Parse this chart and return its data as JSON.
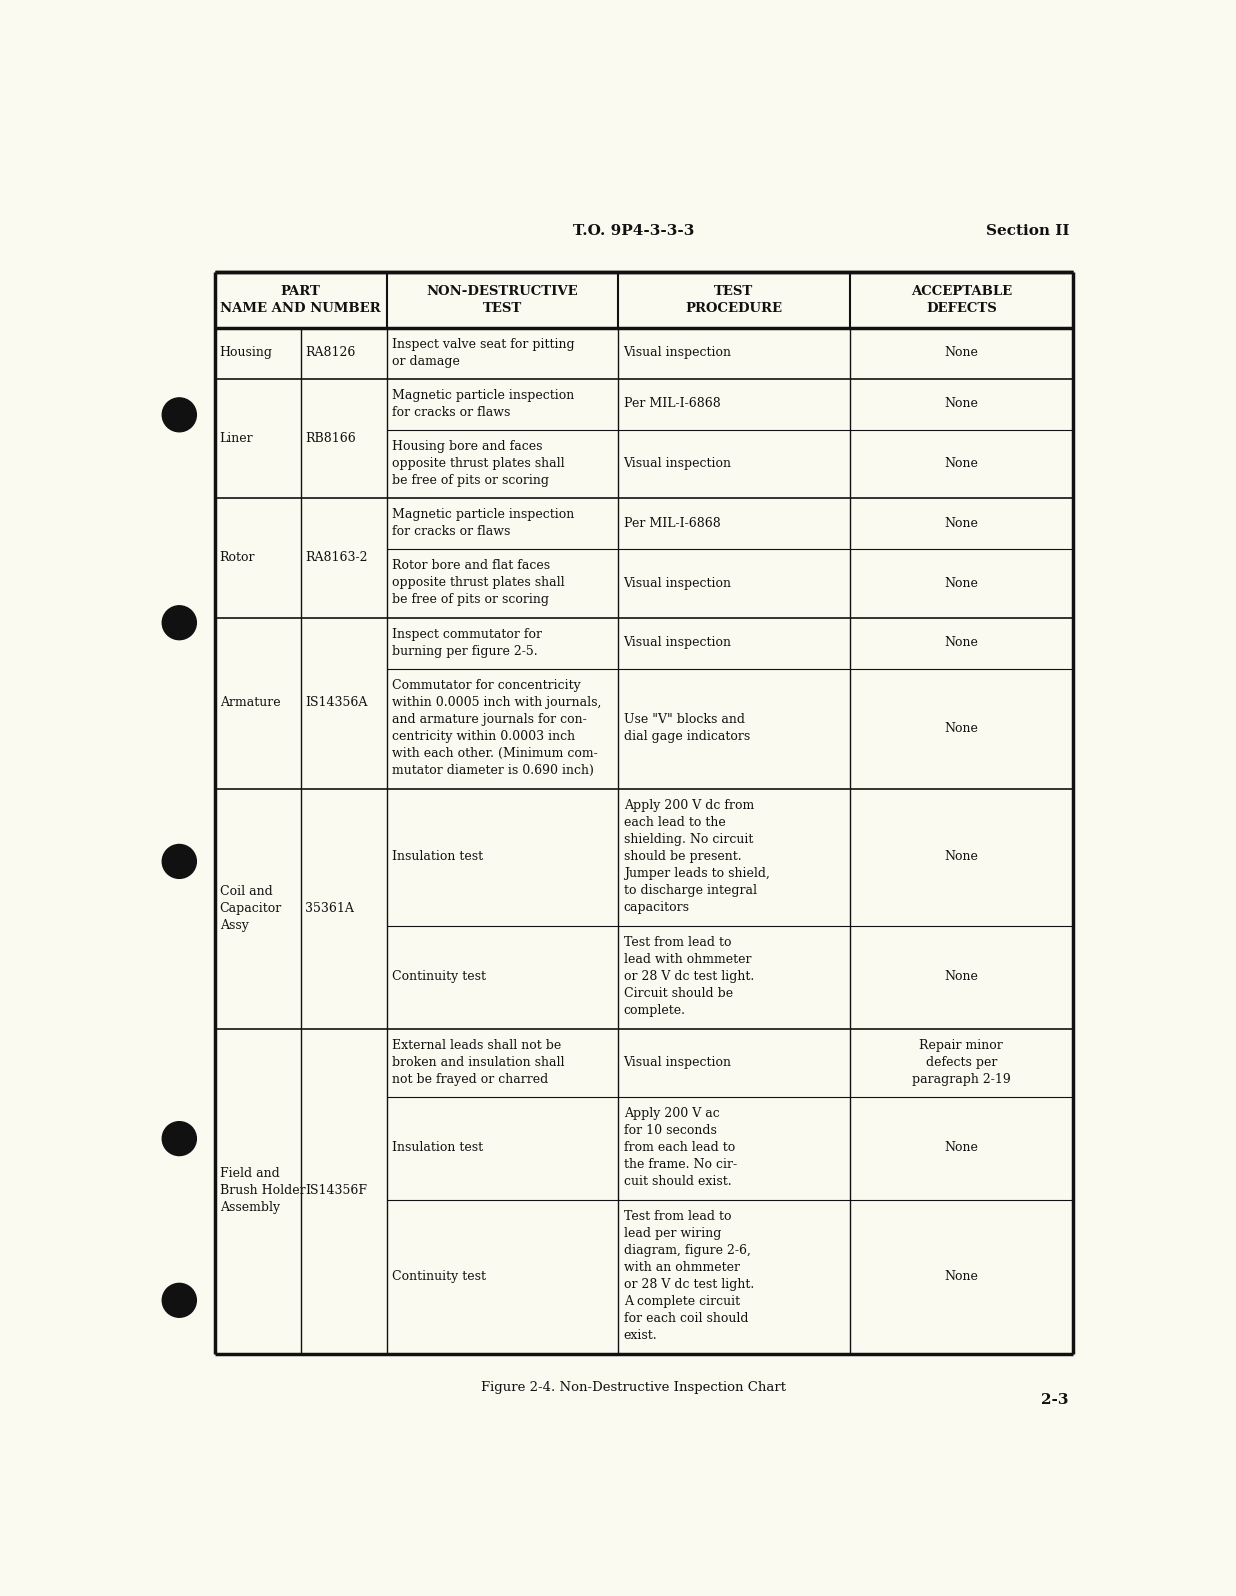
{
  "page_header_center": "T.O. 9P4-3-3-3",
  "page_header_right": "Section II",
  "page_footer_right": "2-3",
  "figure_caption": "Figure 2-4. Non-Destructive Inspection Chart",
  "background_color": "#FAFAF0",
  "table_header_row1": [
    "PART\nNAME AND NUMBER",
    "NON-DESTRUCTIVE\nTEST",
    "TEST\nPROCEDURE",
    "ACCEPTABLE\nDEFECTS"
  ],
  "rows": [
    {
      "part_name": "Housing",
      "part_number": "RA8126",
      "sub_rows": [
        {
          "ndt": "Inspect valve seat for pitting\nor damage",
          "procedure": "Visual inspection",
          "defects": "None"
        }
      ]
    },
    {
      "part_name": "Liner",
      "part_number": "RB8166",
      "sub_rows": [
        {
          "ndt": "Magnetic particle inspection\nfor cracks or flaws",
          "procedure": "Per MIL-I-6868",
          "defects": "None"
        },
        {
          "ndt": "Housing bore and faces\nopposite thrust plates shall\nbe free of pits or scoring",
          "procedure": "Visual inspection",
          "defects": "None"
        }
      ]
    },
    {
      "part_name": "Rotor",
      "part_number": "RA8163-2",
      "sub_rows": [
        {
          "ndt": "Magnetic particle inspection\nfor cracks or flaws",
          "procedure": "Per MIL-I-6868",
          "defects": "None"
        },
        {
          "ndt": "Rotor bore and flat faces\nopposite thrust plates shall\nbe free of pits or scoring",
          "procedure": "Visual inspection",
          "defects": "None"
        }
      ]
    },
    {
      "part_name": "Armature",
      "part_number": "IS14356A",
      "sub_rows": [
        {
          "ndt": "Inspect commutator for\nburning per figure 2-5.",
          "procedure": "Visual inspection",
          "defects": "None"
        },
        {
          "ndt": "Commutator for concentricity\nwithin 0.0005 inch with journals,\nand armature journals for con-\ncentricity within 0.0003 inch\nwith each other. (Minimum com-\nmutator diameter is 0.690 inch)",
          "procedure": "Use \"V\" blocks and\ndial gage indicators",
          "defects": "None"
        }
      ]
    },
    {
      "part_name": "Coil and\nCapacitor\nAssy",
      "part_number": "35361A",
      "sub_rows": [
        {
          "ndt": "Insulation test",
          "procedure": "Apply 200 V dc from\neach lead to the\nshielding. No circuit\nshould be present.\nJumper leads to shield,\nto discharge integral\ncapacitors",
          "defects": "None"
        },
        {
          "ndt": "Continuity test",
          "procedure": "Test from lead to\nlead with ohmmeter\nor 28 V dc test light.\nCircuit should be\ncomplete.",
          "defects": "None"
        }
      ]
    },
    {
      "part_name": "Field and\nBrush Holder\nAssembly",
      "part_number": "IS14356F",
      "sub_rows": [
        {
          "ndt": "External leads shall not be\nbroken and insulation shall\nnot be frayed or charred",
          "procedure": "Visual inspection",
          "defects": "Repair minor\ndefects per\nparagraph 2-19"
        },
        {
          "ndt": "Insulation test",
          "procedure": "Apply 200 V ac\nfor 10 seconds\nfrom each lead to\nthe frame. No cir-\ncuit should exist.",
          "defects": "None"
        },
        {
          "ndt": "Continuity test",
          "procedure": "Test from lead to\nlead per wiring\ndiagram, figure 2-6,\nwith an ohmmeter\nor 28 V dc test light.\nA complete circuit\nfor each coil should\nexist.",
          "defects": "None"
        }
      ]
    }
  ]
}
